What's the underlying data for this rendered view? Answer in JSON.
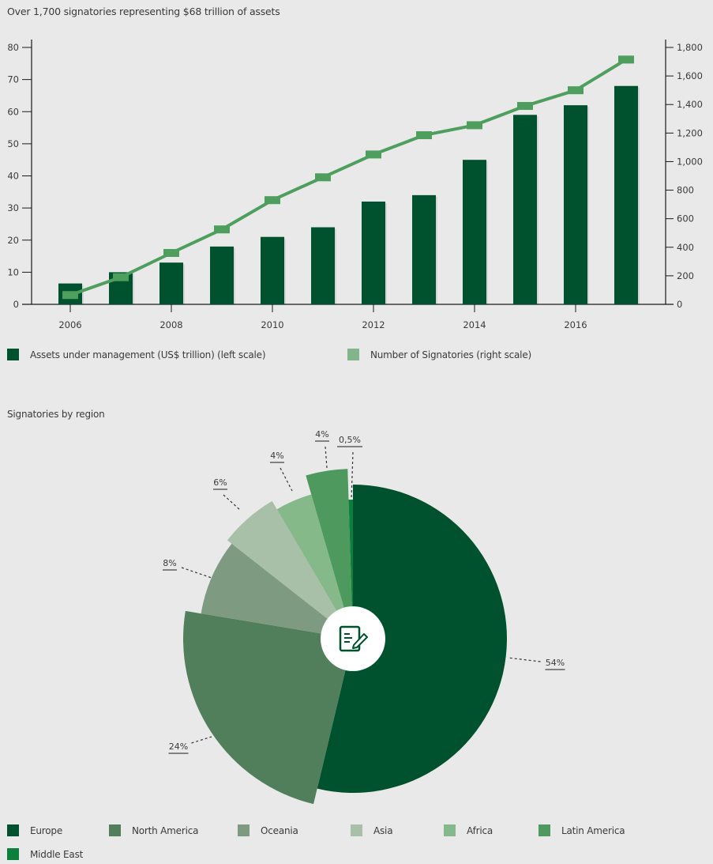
{
  "header": {
    "title": "Over 1,700 signatories representing $68 trillion of assets"
  },
  "pie_section": {
    "title": "Signatories by region"
  },
  "colors": {
    "background": "#e8e9e8",
    "bar": "#00522f",
    "line": "#4e9e5e",
    "axis": "#1a1a1a"
  },
  "chart_data": [
    {
      "type": "bar+line",
      "title": "Over 1,700 signatories representing $68 trillion of assets",
      "x": [
        2006,
        2007,
        2008,
        2009,
        2010,
        2011,
        2012,
        2013,
        2014,
        2015,
        2016,
        2017
      ],
      "xtick_labels": [
        "2006",
        "2008",
        "2010",
        "2012",
        "2014",
        "2016"
      ],
      "series": [
        {
          "name": "Assets under management (US$ trillion) (left scale)",
          "type": "bar",
          "axis": "left",
          "color": "#00522f",
          "values": [
            6.5,
            10,
            13,
            18,
            21,
            24,
            32,
            34,
            45,
            59,
            62,
            68
          ]
        },
        {
          "name": "Number of Signatories (right scale)",
          "type": "line",
          "axis": "right",
          "color": "#4e9e5e",
          "values": [
            65,
            190,
            360,
            525,
            730,
            890,
            1050,
            1185,
            1255,
            1390,
            1500,
            1715
          ]
        }
      ],
      "left_axis": {
        "ylim": [
          0,
          80
        ],
        "ticks": [
          "0",
          "10",
          "20",
          "30",
          "40",
          "50",
          "60",
          "70",
          "80"
        ]
      },
      "right_axis": {
        "ylim": [
          0,
          1800
        ],
        "ticks": [
          "0",
          "200",
          "400",
          "600",
          "800",
          "1,000",
          "1,200",
          "1,400",
          "1,600",
          "1,800"
        ]
      },
      "legend_position": "bottom",
      "grid": false
    },
    {
      "type": "pie",
      "title": "Signatories by region",
      "categories": [
        "Europe",
        "North America",
        "Oceania",
        "Asia",
        "Africa",
        "Latin America",
        "Middle East"
      ],
      "values": [
        54,
        24,
        8,
        6,
        4,
        4,
        0.5
      ],
      "labels": [
        "54%",
        "24%",
        "8%",
        "6%",
        "4%",
        "4%",
        "0,5%"
      ],
      "colors": [
        "#00522f",
        "#527f5b",
        "#7e9a81",
        "#a7c0a7",
        "#86b98a",
        "#4e9a5e",
        "#0b7f3c"
      ],
      "legend_position": "bottom",
      "center_icon": "document-pen-icon"
    }
  ],
  "bar_legend": [
    {
      "label": "Assets under management (US$ trillion) (left scale)",
      "color": "#00522f"
    },
    {
      "label": "Number of Signatories (right scale)",
      "color": "#82b68a"
    }
  ],
  "pie_legend": [
    {
      "label": "Europe",
      "color": "#00522f"
    },
    {
      "label": "North America",
      "color": "#527f5b"
    },
    {
      "label": "Oceania",
      "color": "#7e9a81"
    },
    {
      "label": "Asia",
      "color": "#a7c0a7"
    },
    {
      "label": "Africa",
      "color": "#86b98a"
    },
    {
      "label": "Latin America",
      "color": "#4e9a5e"
    },
    {
      "label": "Middle East",
      "color": "#0b7f3c"
    }
  ]
}
